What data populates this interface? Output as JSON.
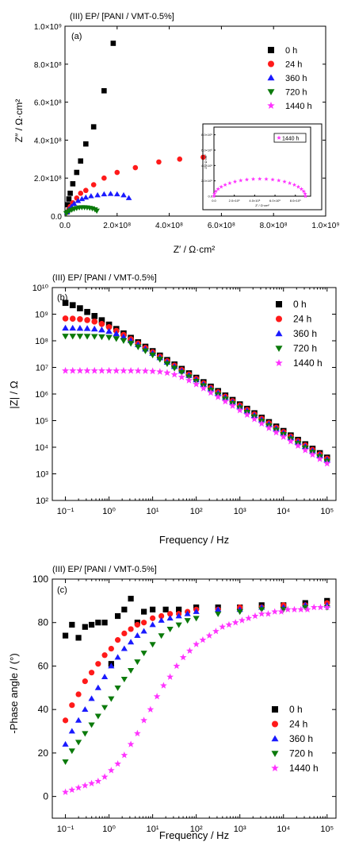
{
  "colors": {
    "0 h": "#000000",
    "24 h": "#ff1a1a",
    "360 h": "#1a1aff",
    "720 h": "#0b7a0b",
    "1440 h": "#ff33ff",
    "axis": "#000000",
    "background": "#ffffff"
  },
  "chart_data": [
    {
      "type": "scatter",
      "panel_title": "(III) EP/ [PANI / VMT-0.5%]",
      "panel_tag": "(a)",
      "xlabel": "Z′ / Ω·cm²",
      "ylabel": "Z″ / Ω·cm²",
      "xlim": [
        0,
        1000000000.0
      ],
      "ylim": [
        0,
        1000000000.0
      ],
      "x_ticks": [
        0,
        200000000.0,
        400000000.0,
        600000000.0,
        800000000.0,
        1000000000.0
      ],
      "x_tick_labels": [
        "0.0",
        "2.0×10⁸",
        "4.0×10⁸",
        "6.0×10⁸",
        "8.0×10⁸",
        "1.0×10⁹"
      ],
      "y_ticks": [
        0,
        200000000.0,
        400000000.0,
        600000000.0,
        800000000.0,
        1000000000.0
      ],
      "y_tick_labels": [
        "0.0",
        "2.0×10⁸",
        "4.0×10⁸",
        "6.0×10⁸",
        "8.0×10⁸",
        "1.0×10⁹"
      ],
      "legend_position": "top-right",
      "series": [
        {
          "name": "0 h",
          "marker": "square",
          "points": [
            [
              10000000.0,
              60000000.0
            ],
            [
              15000000.0,
              90000000.0
            ],
            [
              20000000.0,
              120000000.0
            ],
            [
              30000000.0,
              170000000.0
            ],
            [
              45000000.0,
              230000000.0
            ],
            [
              60000000.0,
              290000000.0
            ],
            [
              80000000.0,
              380000000.0
            ],
            [
              110000000.0,
              470000000.0
            ],
            [
              150000000.0,
              660000000.0
            ],
            [
              185000000.0,
              910000000.0
            ]
          ]
        },
        {
          "name": "24 h",
          "marker": "circle",
          "points": [
            [
              10000000.0,
              20000000.0
            ],
            [
              15000000.0,
              35000000.0
            ],
            [
              20000000.0,
              50000000.0
            ],
            [
              30000000.0,
              70000000.0
            ],
            [
              45000000.0,
              95000000.0
            ],
            [
              60000000.0,
              120000000.0
            ],
            [
              80000000.0,
              135000000.0
            ],
            [
              110000000.0,
              165000000.0
            ],
            [
              150000000.0,
              200000000.0
            ],
            [
              200000000.0,
              230000000.0
            ],
            [
              270000000.0,
              255000000.0
            ],
            [
              360000000.0,
              285000000.0
            ],
            [
              440000000.0,
              300000000.0
            ],
            [
              530000000.0,
              310000000.0
            ]
          ]
        },
        {
          "name": "360 h",
          "marker": "triangle-up",
          "points": [
            [
              8000000.0,
              20000000.0
            ],
            [
              15000000.0,
              35000000.0
            ],
            [
              25000000.0,
              50000000.0
            ],
            [
              35000000.0,
              65000000.0
            ],
            [
              50000000.0,
              80000000.0
            ],
            [
              65000000.0,
              90000000.0
            ],
            [
              80000000.0,
              98000000.0
            ],
            [
              100000000.0,
              105000000.0
            ],
            [
              125000000.0,
              110000000.0
            ],
            [
              150000000.0,
              115000000.0
            ],
            [
              175000000.0,
              117000000.0
            ],
            [
              200000000.0,
              115000000.0
            ],
            [
              225000000.0,
              110000000.0
            ],
            [
              245000000.0,
              95000000.0
            ]
          ]
        },
        {
          "name": "720 h",
          "marker": "triangle-down",
          "points": [
            [
              5000000.0,
              15000000.0
            ],
            [
              10000000.0,
              22000000.0
            ],
            [
              18000000.0,
              29000000.0
            ],
            [
              26000000.0,
              33000000.0
            ],
            [
              35000000.0,
              38000000.0
            ],
            [
              45000000.0,
              42000000.0
            ],
            [
              55000000.0,
              45000000.0
            ],
            [
              65000000.0,
              46000000.0
            ],
            [
              75000000.0,
              46000000.0
            ],
            [
              85000000.0,
              45000000.0
            ],
            [
              95000000.0,
              43000000.0
            ],
            [
              105000000.0,
              40000000.0
            ],
            [
              115000000.0,
              35000000.0
            ],
            [
              122000000.0,
              28000000.0
            ]
          ]
        },
        {
          "name": "1440 h",
          "marker": "star",
          "points": []
        }
      ],
      "inset": {
        "legend": "1440 h",
        "xlabel": "Z′ / Ω·cm²",
        "ylabel": "Z″ / Ω·cm²",
        "x_tick_labels": [
          "0.0",
          "2.0×10⁶",
          "4.0×10⁶",
          "6.0×10⁶",
          "8.0×10⁶"
        ],
        "y_tick_labels": [
          "0.0",
          "2.0×10⁶",
          "4.0×10⁶",
          "6.0×10⁶",
          "8.0×10⁶"
        ],
        "xlim": [
          0,
          9500000.0
        ],
        "ylim": [
          0,
          9000000.0
        ],
        "series_name": "1440 h",
        "semicircle": {
          "center_x": 4500000.0,
          "radius": 4500000.0,
          "depression": 0.5,
          "n": 23
        }
      }
    },
    {
      "type": "scatter",
      "panel_title": "(III) EP/ [PANI / VMT-0.5%]",
      "panel_tag": "(b)",
      "xlabel": "Frequency / Hz",
      "ylabel": "|Z| / Ω",
      "x_scale": "log",
      "y_scale": "log",
      "xlim": [
        0.05,
        160000.0
      ],
      "ylim": [
        100,
        10000000000.0
      ],
      "x_tick_labels": [
        "10⁻¹",
        "10⁰",
        "10¹",
        "10²",
        "10³",
        "10⁴",
        "10⁵"
      ],
      "y_tick_labels": [
        "10²",
        "10³",
        "10⁴",
        "10⁵",
        "10⁶",
        "10⁷",
        "10⁸",
        "10⁹",
        "10¹⁰"
      ],
      "legend_position": "top-right",
      "log_freq_start": -1,
      "log_freq_end": 5,
      "points_per_series": 37,
      "series": [
        {
          "name": "0 h",
          "marker": "square",
          "r_ohm": 3500000000.0,
          "c_farad": 3.9e-10
        },
        {
          "name": "24 h",
          "marker": "circle",
          "r_ohm": 700000000.0,
          "c_farad": 4.3e-10
        },
        {
          "name": "360 h",
          "marker": "triangle-up",
          "r_ohm": 300000000.0,
          "c_farad": 4.7e-10
        },
        {
          "name": "720 h",
          "marker": "triangle-down",
          "r_ohm": 150000000.0,
          "c_farad": 5.3e-10
        },
        {
          "name": "1440 h",
          "marker": "star",
          "r_ohm": 7500000.0,
          "c_farad": 6.5e-10
        }
      ]
    },
    {
      "type": "scatter",
      "panel_title": "(III) EP/ [PANI / VMT-0.5%]",
      "panel_tag": "(c)",
      "xlabel": "Frequency / Hz",
      "ylabel": "-Phase angle / (°)",
      "x_scale": "log",
      "xlim": [
        0.05,
        160000.0
      ],
      "ylim": [
        -10,
        100
      ],
      "x_tick_labels": [
        "10⁻¹",
        "10⁰",
        "10¹",
        "10²",
        "10³",
        "10⁴",
        "10⁵"
      ],
      "y_tick_labels": [
        "0",
        "20",
        "40",
        "60",
        "80",
        "100"
      ],
      "y_ticks": [
        0,
        20,
        40,
        60,
        80,
        100
      ],
      "legend_position": "bottom-right",
      "series": [
        {
          "name": "0 h",
          "marker": "square",
          "log_freq": [
            -1.0,
            -0.85,
            -0.7,
            -0.55,
            -0.4,
            -0.25,
            -0.1,
            0.05,
            0.2,
            0.35,
            0.5,
            0.65,
            0.8,
            1.0,
            1.3,
            1.6,
            2.0,
            2.5,
            3.0,
            3.5,
            4.0,
            4.5,
            5.0
          ],
          "phase": [
            74,
            79,
            73,
            78,
            79,
            80,
            80,
            61,
            83,
            86,
            91,
            80,
            85,
            86,
            86,
            86,
            87,
            87,
            87,
            88,
            88,
            89,
            90
          ]
        },
        {
          "name": "24 h",
          "marker": "circle",
          "log_freq": [
            -1.0,
            -0.85,
            -0.7,
            -0.55,
            -0.4,
            -0.25,
            -0.1,
            0.05,
            0.2,
            0.35,
            0.5,
            0.65,
            0.8,
            1.0,
            1.2,
            1.4,
            1.6,
            1.8,
            2.0,
            2.5,
            3.0,
            3.5,
            4.0,
            4.5,
            5.0
          ],
          "phase": [
            35,
            42,
            47,
            53,
            57,
            61,
            65,
            68,
            72,
            75,
            77,
            79,
            80,
            82,
            83,
            84,
            84,
            85,
            86,
            86,
            87,
            87,
            88,
            88,
            89
          ]
        },
        {
          "name": "360 h",
          "marker": "triangle-up",
          "log_freq": [
            -1.0,
            -0.85,
            -0.7,
            -0.55,
            -0.4,
            -0.25,
            -0.1,
            0.05,
            0.2,
            0.35,
            0.5,
            0.65,
            0.8,
            1.0,
            1.2,
            1.4,
            1.6,
            1.8,
            2.0,
            2.5,
            3.0,
            3.5,
            4.0,
            4.5,
            5.0
          ],
          "phase": [
            24,
            30,
            35,
            40,
            45,
            50,
            55,
            60,
            64,
            68,
            71,
            74,
            76,
            79,
            81,
            82,
            83,
            84,
            85,
            86,
            86,
            87,
            87,
            88,
            88
          ]
        },
        {
          "name": "720 h",
          "marker": "triangle-down",
          "log_freq": [
            -1.0,
            -0.85,
            -0.7,
            -0.55,
            -0.4,
            -0.25,
            -0.1,
            0.05,
            0.2,
            0.35,
            0.5,
            0.65,
            0.8,
            1.0,
            1.2,
            1.4,
            1.6,
            1.8,
            2.0,
            2.5,
            3.0,
            3.5,
            4.0,
            4.5,
            5.0
          ],
          "phase": [
            16,
            21,
            25,
            29,
            33,
            37,
            41,
            45,
            50,
            54,
            58,
            62,
            66,
            70,
            74,
            77,
            79,
            81,
            82,
            84,
            85,
            86,
            86,
            87,
            87
          ]
        },
        {
          "name": "1440 h",
          "marker": "star",
          "log_freq": [
            -1.0,
            -0.85,
            -0.7,
            -0.55,
            -0.4,
            -0.25,
            -0.1,
            0.05,
            0.2,
            0.35,
            0.5,
            0.65,
            0.8,
            0.95,
            1.1,
            1.25,
            1.4,
            1.55,
            1.7,
            1.85,
            2.0,
            2.15,
            2.3,
            2.45,
            2.6,
            2.75,
            2.9,
            3.05,
            3.2,
            3.35,
            3.5,
            3.65,
            3.8,
            3.95,
            4.1,
            4.25,
            4.4,
            4.55,
            4.7,
            4.85,
            5.0
          ],
          "phase": [
            2,
            3,
            4,
            5,
            6,
            7,
            9,
            12,
            15,
            19,
            24,
            29,
            35,
            40,
            46,
            51,
            55,
            60,
            64,
            67,
            70,
            72,
            74,
            76,
            78,
            79,
            80,
            81,
            82,
            83,
            84,
            84,
            85,
            85,
            86,
            86,
            86,
            86,
            87,
            87,
            87
          ]
        }
      ]
    }
  ]
}
